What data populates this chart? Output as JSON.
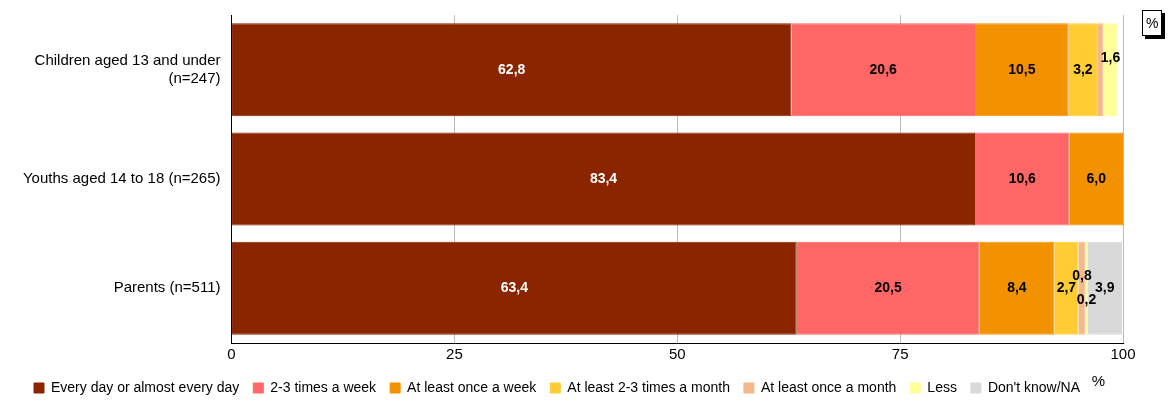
{
  "chart_data": {
    "type": "bar",
    "orientation": "horizontal",
    "stacked": true,
    "categories": [
      "Children aged 13 and under (n=247)",
      "Youths aged 14 to 18 (n=265)",
      "Parents (n=511)"
    ],
    "series": [
      {
        "name": "Every day or almost every day",
        "color": "#8b2500",
        "values": [
          62.8,
          83.4,
          63.4
        ],
        "value_labels": [
          "62,8",
          "83,4",
          "63,4"
        ]
      },
      {
        "name": "2-3 times a week",
        "color": "#ff6666",
        "values": [
          20.6,
          10.6,
          20.5
        ],
        "value_labels": [
          "20,6",
          "10,6",
          "20,5"
        ]
      },
      {
        "name": "At least once a week",
        "color": "#f39200",
        "values": [
          10.5,
          6.0,
          8.4
        ],
        "value_labels": [
          "10,5",
          "6,0",
          "8,4"
        ]
      },
      {
        "name": "At least 2-3 times a month",
        "color": "#ffcc33",
        "values": [
          3.2,
          null,
          2.7
        ],
        "value_labels": [
          "3,2",
          null,
          "2,7"
        ]
      },
      {
        "name": "At least once a month",
        "color": "#f5b88a",
        "values": [
          0.7,
          null,
          0.8
        ],
        "value_labels": [
          null,
          null,
          "0,8"
        ]
      },
      {
        "name": "Less",
        "color": "#ffff99",
        "values": [
          1.6,
          null,
          0.2
        ],
        "value_labels": [
          "1,6",
          null,
          "0,2"
        ]
      },
      {
        "name": "Don't know/NA",
        "color": "#d9d9d9",
        "values": [
          null,
          null,
          3.9
        ],
        "value_labels": [
          null,
          null,
          "3,9"
        ]
      }
    ],
    "xlim": [
      0,
      100
    ],
    "xticks": [
      0,
      25,
      50,
      75,
      100
    ],
    "xlabel": "%",
    "grid": "x",
    "legend": "bottom",
    "annotations": [
      "%"
    ]
  }
}
